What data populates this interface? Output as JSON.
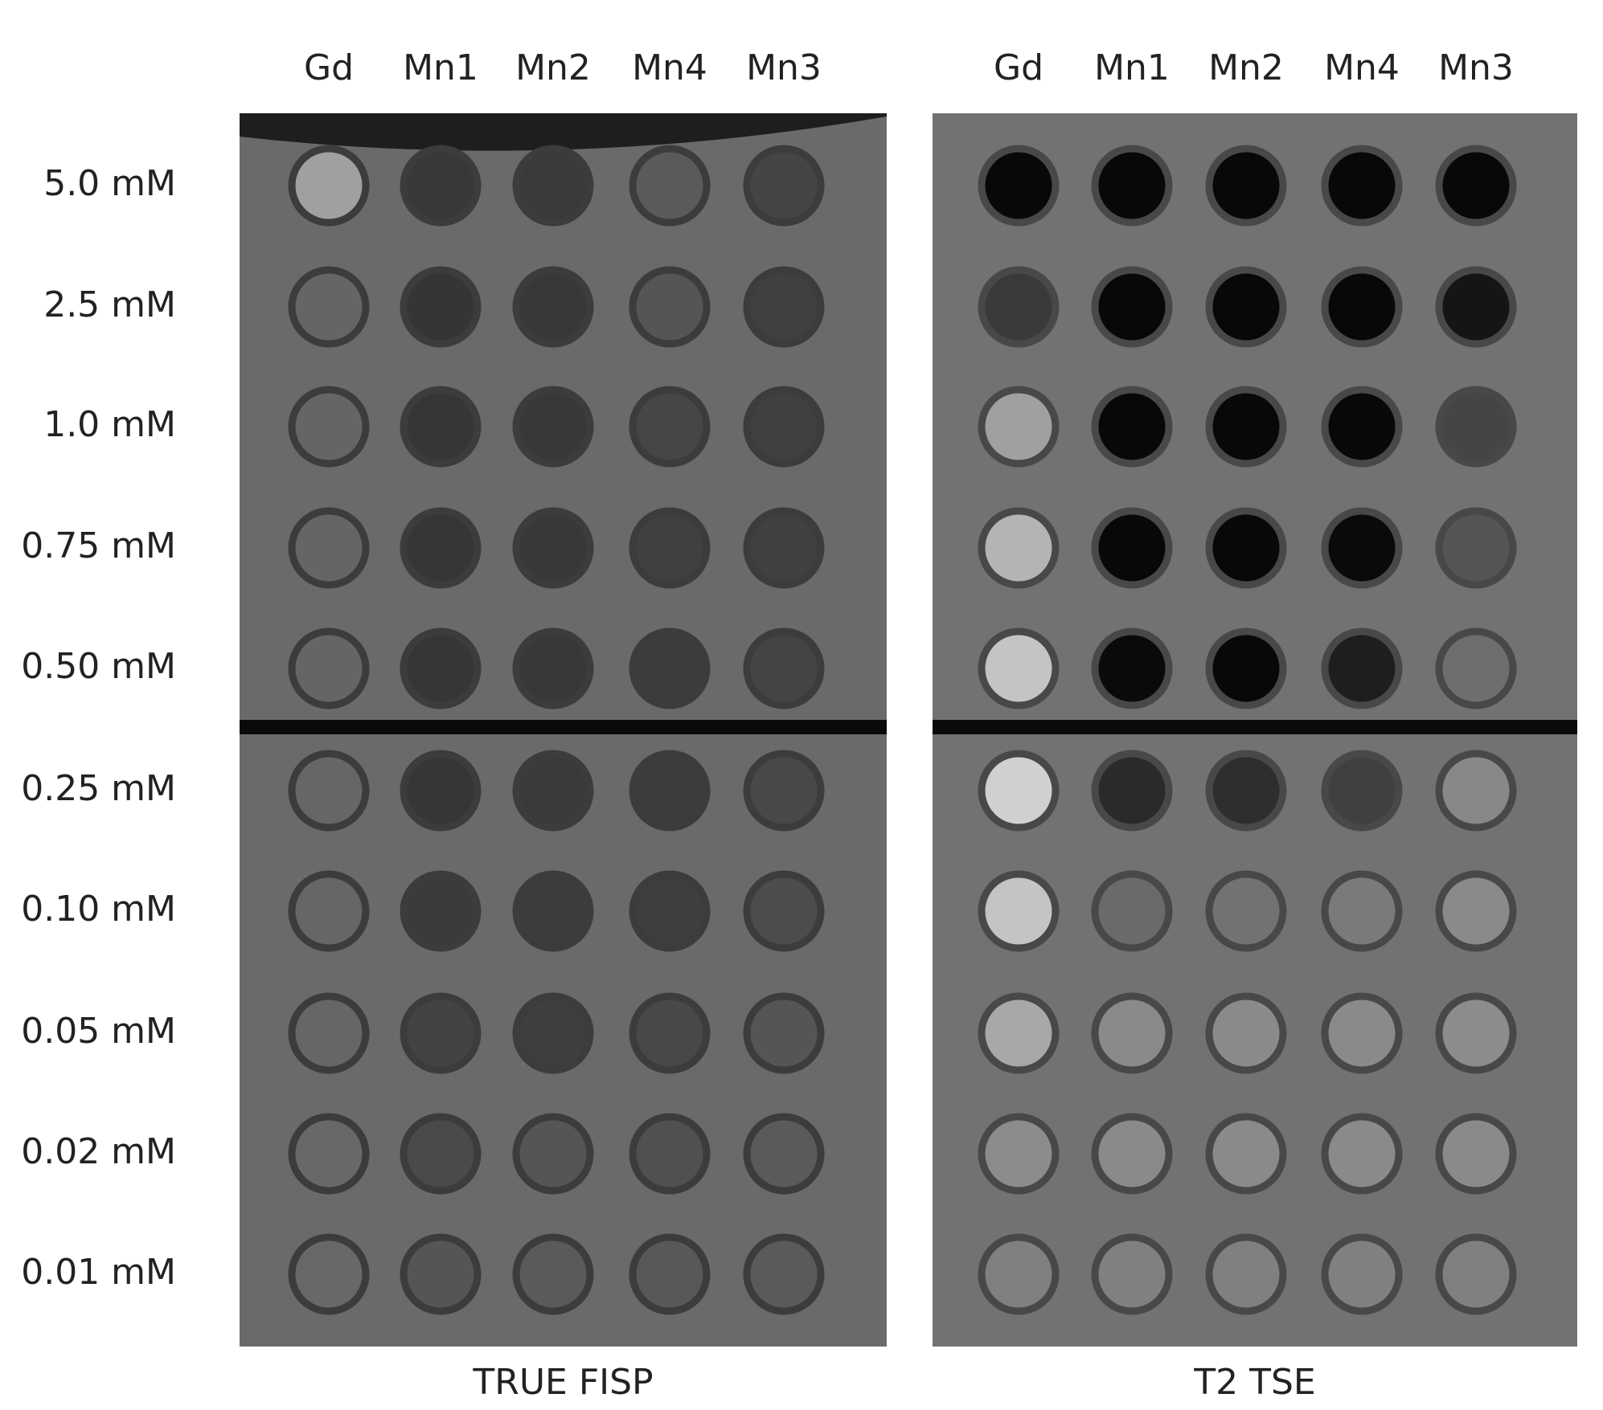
{
  "row_labels": [
    "5.0 mM",
    "2.5 mM",
    "1.0 mM",
    "0.75 mM",
    "0.50 mM",
    "0.25 mM",
    "0.10 mM",
    "0.05 mM",
    "0.02 mM",
    "0.01 mM"
  ],
  "panels": [
    {
      "title": "TRUE FISP",
      "columns": [
        "Gd",
        "Mn1",
        "Mn2",
        "Mn4",
        "Mn3"
      ],
      "background": "#6a6a6a",
      "ring_color": "#3c3c3c",
      "cell_colors": [
        [
          "#a0a0a0",
          "#383838",
          "#3a3a3a",
          "#5a5a5a",
          "#454545"
        ],
        [
          "#656565",
          "#353535",
          "#383838",
          "#555555",
          "#404040"
        ],
        [
          "#656565",
          "#363636",
          "#383838",
          "#464646",
          "#404040"
        ],
        [
          "#656565",
          "#363636",
          "#383838",
          "#404040",
          "#404040"
        ],
        [
          "#656565",
          "#363636",
          "#383838",
          "#3c3c3c",
          "#444444"
        ],
        [
          "#666666",
          "#363636",
          "#3a3a3a",
          "#3c3c3c",
          "#484848"
        ],
        [
          "#666666",
          "#3a3a3a",
          "#3c3c3c",
          "#3e3e3e",
          "#4c4c4c"
        ],
        [
          "#666666",
          "#434343",
          "#3e3e3e",
          "#484848",
          "#555555"
        ],
        [
          "#686868",
          "#4a4a4a",
          "#555555",
          "#505050",
          "#5a5a5a"
        ],
        [
          "#686868",
          "#555555",
          "#5a5a5a",
          "#585858",
          "#5a5a5a"
        ]
      ]
    },
    {
      "title": "T2 TSE",
      "columns": [
        "Gd",
        "Mn1",
        "Mn2",
        "Mn4",
        "Mn3"
      ],
      "background": "#727272",
      "ring_color": "#484848",
      "cell_colors": [
        [
          "#080808",
          "#080808",
          "#080808",
          "#080808",
          "#080808"
        ],
        [
          "#3a3a3a",
          "#080808",
          "#080808",
          "#080808",
          "#151515"
        ],
        [
          "#a0a0a0",
          "#080808",
          "#080808",
          "#080808",
          "#454545"
        ],
        [
          "#b4b4b4",
          "#080808",
          "#080808",
          "#0a0a0a",
          "#555555"
        ],
        [
          "#c4c4c4",
          "#0a0a0a",
          "#080808",
          "#1e1e1e",
          "#6e6e6e"
        ],
        [
          "#d0d0d0",
          "#2a2a2a",
          "#2e2e2e",
          "#404040",
          "#888888"
        ],
        [
          "#c4c4c4",
          "#6a6a6a",
          "#727272",
          "#7a7a7a",
          "#8a8a8a"
        ],
        [
          "#a8a8a8",
          "#8a8a8a",
          "#8a8a8a",
          "#8a8a8a",
          "#8c8c8c"
        ],
        [
          "#8c8c8c",
          "#8a8a8a",
          "#8a8a8a",
          "#8a8a8a",
          "#8a8a8a"
        ],
        [
          "#808080",
          "#808080",
          "#808080",
          "#808080",
          "#808080"
        ]
      ]
    }
  ]
}
